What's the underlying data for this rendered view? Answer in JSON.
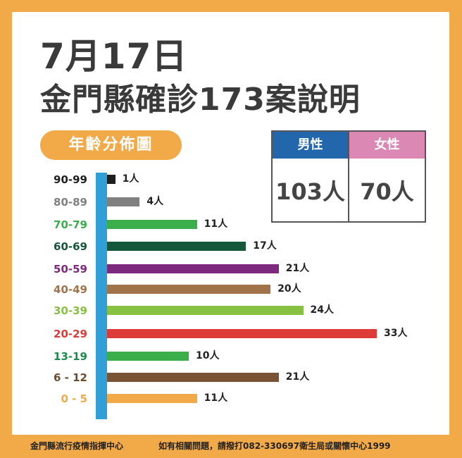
{
  "title_line1": "7月17日",
  "title_line2": "金門縣確診173案說明",
  "section_label": "年齡分佈圖",
  "gender": {
    "male_label": "男性",
    "male_value": "103人",
    "male_color": "#2266ab",
    "female_label": "女性",
    "female_value": "70人",
    "female_color": "#db88b4"
  },
  "chart_data": {
    "type": "bar",
    "orientation": "horizontal",
    "title": "年齡分佈圖",
    "categories": [
      "90-99",
      "80-89",
      "70-79",
      "60-69",
      "50-59",
      "40-49",
      "30-39",
      "20-29",
      "13-19",
      "6 - 12",
      "0 - 5"
    ],
    "values": [
      1,
      4,
      11,
      17,
      21,
      20,
      24,
      33,
      10,
      21,
      11
    ],
    "value_labels": [
      "1人",
      "4人",
      "11人",
      "17人",
      "21人",
      "20人",
      "24人",
      "33人",
      "10人",
      "21人",
      "11人"
    ],
    "colors": [
      "#1e1e1e",
      "#808080",
      "#3aae4a",
      "#15573a",
      "#7d2a7e",
      "#a1734b",
      "#86c141",
      "#dd3b38",
      "#3aae4a",
      "#7a5335",
      "#f2a948"
    ],
    "label_colors": [
      "#1e1e1e",
      "#808080",
      "#3aae4a",
      "#15573a",
      "#7d2a7e",
      "#a1734b",
      "#86c141",
      "#dd3b38",
      "#1e8a4a",
      "#6b4a2e",
      "#f2a948"
    ],
    "axis_color": "#2f9fd5",
    "xlim": [
      0,
      33
    ]
  },
  "footer": {
    "org": "金門縣流行疫情指揮中心",
    "contact": "如有相關問題，請撥打082-330697衛生局或關懷中心1999"
  }
}
